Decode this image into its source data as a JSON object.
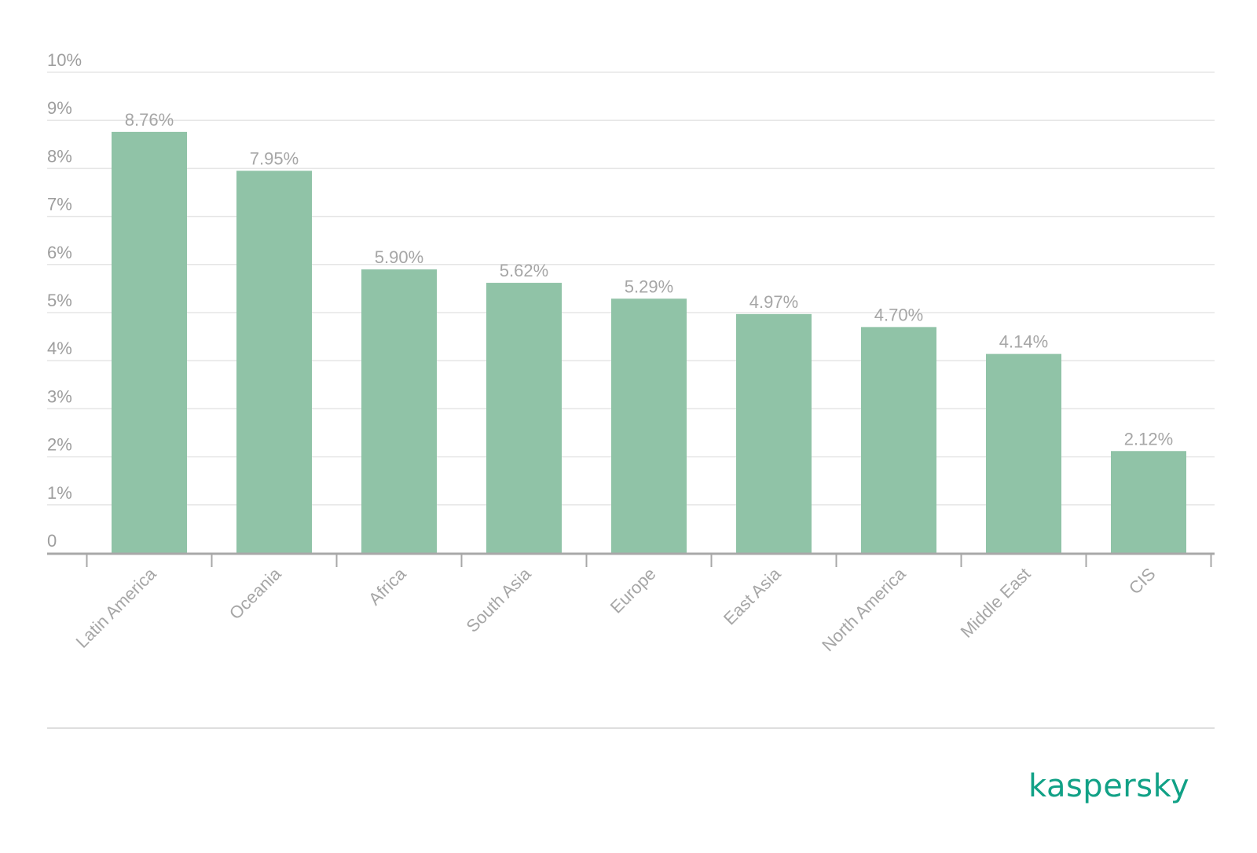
{
  "chart_data": {
    "type": "bar",
    "categories": [
      "Latin America",
      "Oceania",
      "Africa",
      "South Asia",
      "Europe",
      "East Asia",
      "North America",
      "Middle East",
      "CIS"
    ],
    "values": [
      8.76,
      7.95,
      5.9,
      5.62,
      5.29,
      4.97,
      4.7,
      4.14,
      2.12
    ],
    "value_labels": [
      "8.76%",
      "7.95%",
      "5.90%",
      "5.62%",
      "5.29%",
      "4.97%",
      "4.70%",
      "4.14%",
      "2.12%"
    ],
    "y_ticks": [
      "0",
      "1%",
      "2%",
      "3%",
      "4%",
      "5%",
      "6%",
      "7%",
      "8%",
      "9%",
      "10%"
    ],
    "ylim": [
      0,
      10
    ],
    "grid": true,
    "legend": "none",
    "bar_color": "#90c3a7"
  },
  "brand": {
    "name": "kaspersky",
    "color": "#11a186"
  }
}
